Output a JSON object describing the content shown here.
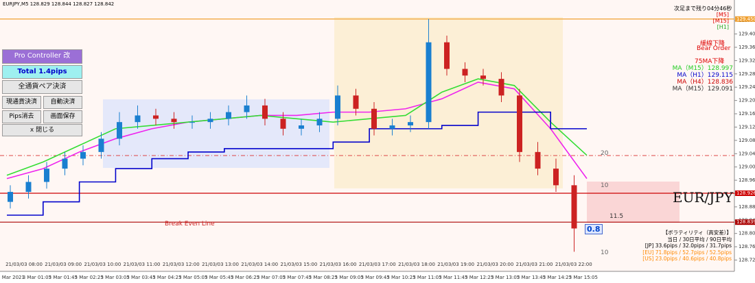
{
  "header": {
    "symbol": "EURJPY,M5  128.829 128.844 128.827 128.842",
    "countdown": "次足まで残り04分46秒"
  },
  "panel": {
    "title": "Pro Controller 改",
    "total": "Total   1.4pips",
    "close_all": "全通貨ペア決済",
    "close_current": "現通貨決済",
    "auto_close": "自動決済",
    "clear_pips": "Pips消去",
    "save_screen": "画面保存",
    "close": "x 閉じる"
  },
  "signals": {
    "timeframes": [
      "[M5]",
      "[M15]",
      "[H1]"
    ],
    "trend": "緩線下降",
    "order": "Bear Order",
    "ma75": "75MA下降"
  },
  "ma_legend": [
    {
      "text": "MA（M15）128.997",
      "color": "#22cc22"
    },
    {
      "text": "MA（H1）129.115",
      "color": "#0000cc"
    },
    {
      "text": "MA（H4）128.836",
      "color": "#cc0000"
    },
    {
      "text": "MA（M15）129.091",
      "color": "#333333"
    }
  ],
  "chart_labels": {
    "pair": "EUR/JPY",
    "break_even": "Break Even Line",
    "level_20": "20",
    "level_10a": "10",
    "level_115": "11.5",
    "level_10b": "10",
    "pips_box": "0.8"
  },
  "volatility": {
    "title": "【ボラティリティ（高安差）】",
    "header": "当日 / 30日平均 / 90日平均",
    "jp": "[JP] 33.6pips / 32.0pips / 31.7pips",
    "eu": "[EU] 71.8pips / 52.7pips / 52.5pips",
    "us": "[US] 23.0pips / 40.6pips / 40.8pips"
  },
  "price_axis": {
    "ylim": [
      128.691,
      129.499
    ],
    "yticks": [
      129.445,
      129.405,
      129.365,
      129.325,
      129.285,
      129.245,
      129.205,
      129.165,
      129.125,
      129.085,
      129.045,
      129.005,
      128.965,
      128.925,
      128.885,
      128.845,
      128.805,
      128.765,
      128.725
    ],
    "levels": [
      {
        "value": 129.45,
        "label": "129.450",
        "color": "#f0a030"
      },
      {
        "value": 128.926,
        "label": "128.926",
        "color": "#cc0000"
      },
      {
        "value": 128.839,
        "label": "128.839",
        "color": "#aa0000"
      }
    ]
  },
  "time_axis": {
    "upper": [
      "21/03/03 08:00",
      "21/03/03 09:00",
      "21/03/03 10:00",
      "21/03/03 11:00",
      "21/03/03 12:00",
      "21/03/03 13:00",
      "21/03/03 14:00",
      "21/03/03 15:00",
      "21/03/03 16:00",
      "21/03/03 17:00",
      "21/03/03 18:00",
      "21/03/03 19:00",
      "21/03/03 20:00",
      "21/03/03 21:00",
      "21/03/03 22:00"
    ],
    "lower": [
      "3 Mar 2021",
      "3 Mar 01:05",
      "3 Mar 01:45",
      "3 Mar 02:25",
      "3 Mar 03:05",
      "3 Mar 03:45",
      "3 Mar 04:25",
      "3 Mar 05:05",
      "3 Mar 05:45",
      "3 Mar 06:25",
      "3 Mar 07:05",
      "3 Mar 07:45",
      "3 Mar 08:25",
      "3 Mar 09:05",
      "3 Mar 09:45",
      "3 Mar 10:25",
      "3 Mar 11:05",
      "3 Mar 11:45",
      "3 Mar 12:25",
      "3 Mar 13:05",
      "3 Mar 13:45",
      "3 Mar 14:25",
      "3 Mar 15:05"
    ]
  },
  "candles": {
    "open": [
      128.9,
      128.93,
      128.96,
      129.0,
      129.03,
      129.05,
      129.09,
      129.14,
      129.16,
      129.15,
      129.14,
      129.14,
      129.15,
      129.17,
      129.19,
      129.15,
      129.12,
      129.13,
      129.15,
      129.22,
      129.18,
      129.12,
      129.13,
      129.14,
      129.38,
      129.3,
      129.28,
      129.27,
      129.22,
      129.05,
      129.0,
      128.95
    ],
    "high": [
      128.95,
      128.98,
      129.02,
      129.05,
      129.07,
      129.11,
      129.17,
      129.19,
      129.18,
      129.17,
      129.16,
      129.17,
      129.19,
      129.22,
      129.21,
      129.17,
      129.15,
      129.17,
      129.25,
      129.24,
      129.2,
      129.15,
      129.16,
      129.45,
      129.4,
      129.32,
      129.3,
      129.29,
      129.24,
      129.08,
      129.03,
      128.98
    ],
    "low": [
      128.88,
      128.91,
      128.94,
      128.98,
      129.01,
      129.03,
      129.07,
      129.12,
      129.13,
      129.12,
      129.12,
      129.12,
      129.13,
      129.15,
      129.13,
      129.1,
      129.1,
      129.11,
      129.13,
      129.16,
      129.1,
      129.1,
      129.11,
      129.12,
      129.28,
      129.26,
      129.25,
      129.2,
      129.02,
      128.98,
      128.93,
      128.75
    ],
    "close": [
      128.93,
      128.96,
      129.0,
      129.03,
      129.05,
      129.09,
      129.14,
      129.16,
      129.15,
      129.14,
      129.14,
      129.15,
      129.17,
      129.19,
      129.15,
      129.12,
      129.13,
      129.15,
      129.22,
      129.18,
      129.12,
      129.13,
      129.14,
      129.38,
      129.3,
      129.28,
      129.27,
      129.22,
      129.05,
      129.0,
      128.95,
      128.82
    ]
  },
  "ma_lines": [
    {
      "color": "#ee22ee",
      "step": false,
      "values": [
        128.97,
        129.0,
        129.05,
        129.09,
        129.12,
        129.14,
        129.15,
        129.16,
        129.16,
        129.17,
        129.17,
        129.18,
        129.21,
        129.26,
        129.24,
        129.12,
        128.97
      ]
    },
    {
      "color": "#33dd33",
      "step": false,
      "values": [
        128.98,
        129.02,
        129.07,
        129.12,
        129.13,
        129.14,
        129.15,
        129.16,
        129.15,
        129.14,
        129.15,
        129.16,
        129.23,
        129.27,
        129.25,
        129.14,
        129.04
      ]
    },
    {
      "color": "#0000cc",
      "step": true,
      "values": [
        128.86,
        128.9,
        128.96,
        129.0,
        129.03,
        129.05,
        129.06,
        129.06,
        129.06,
        129.08,
        129.12,
        129.12,
        129.13,
        129.17,
        129.17,
        129.12,
        129.12
      ]
    }
  ]
}
